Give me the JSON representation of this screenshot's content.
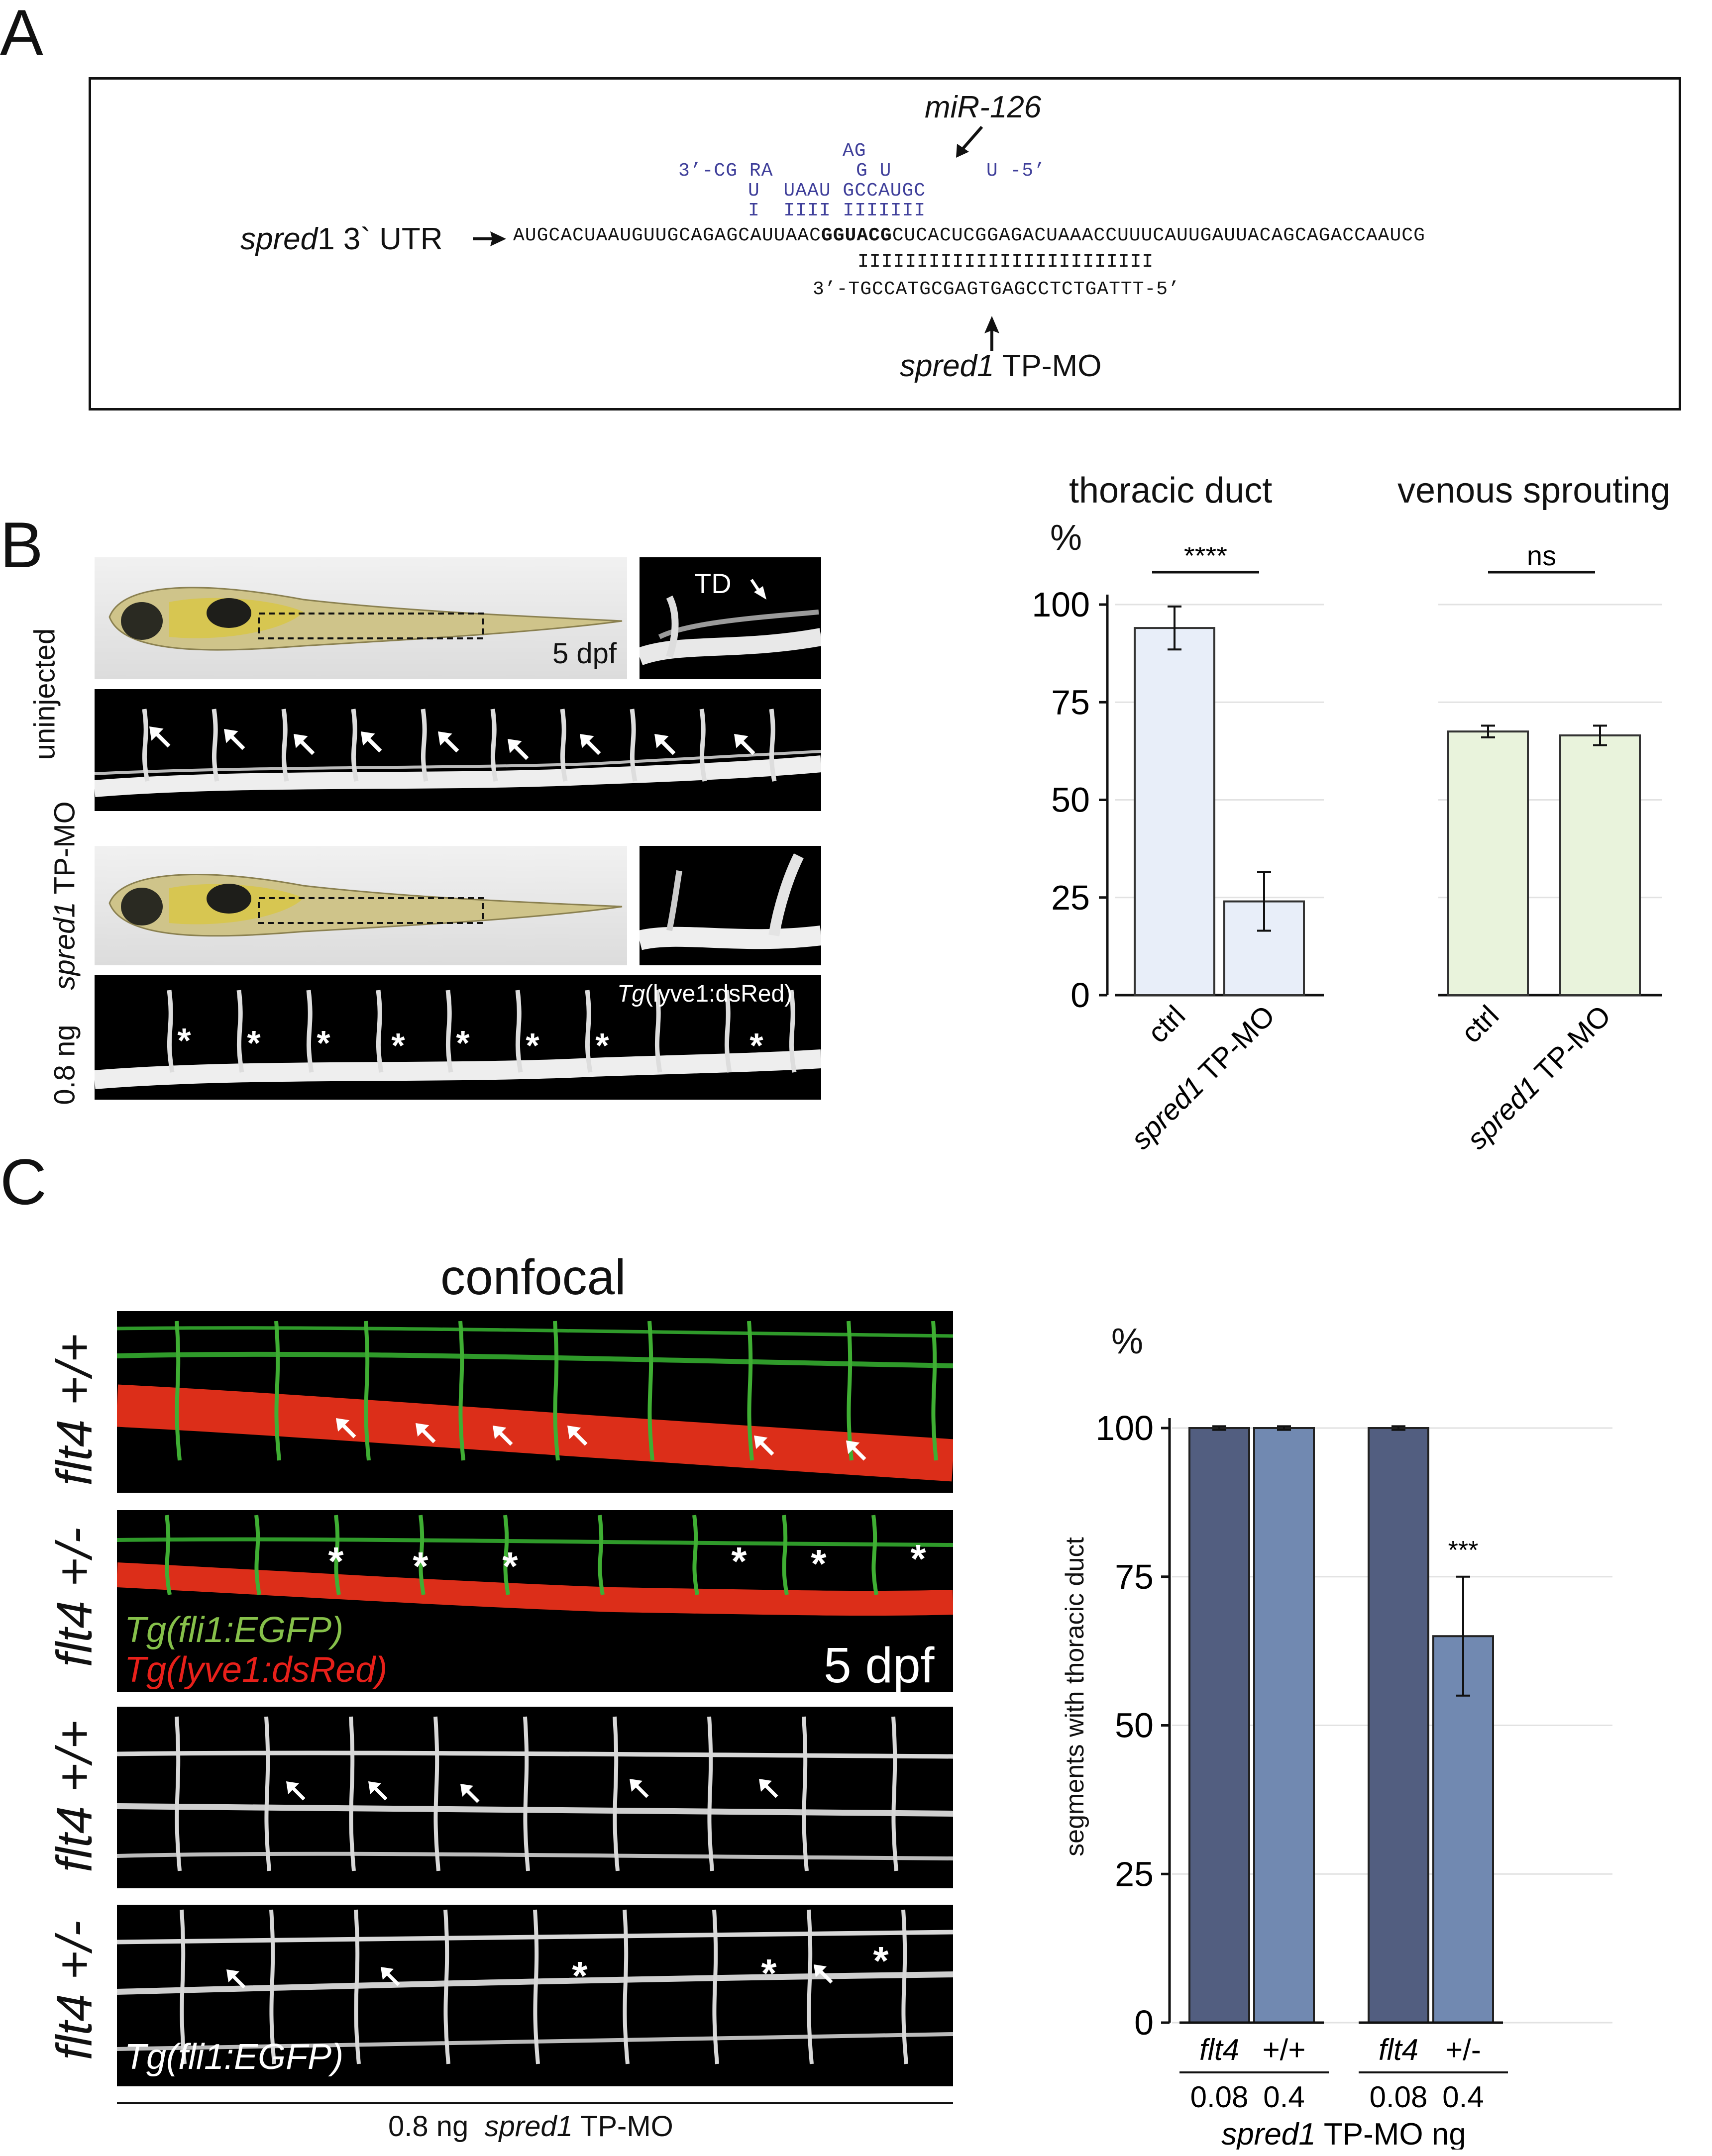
{
  "panels": {
    "a": "A",
    "b": "B",
    "c": "C"
  },
  "panel_a": {
    "mir_label": "miR-126",
    "mir_lines": [
      "AG",
      "3’-CG RA       G U        U -5’",
      "U  UAAU GCCAUGC",
      "I  IIII IIIIIII"
    ],
    "utr_label_italic": "spred",
    "utr_label_rest": "1 3` UTR",
    "utr_pre": "AUGCACUAAUGUUGCAGAGCAUUAAC",
    "utr_bold": "GGUACG",
    "utr_post": "CUCACUCGGAGACUAAACCUUUCAUUGAUUACAGCAGACCAAUCG",
    "mo_pairs": "IIIIIIIIIIIIIIIIIIIIIIIII",
    "mo_seq": "3’-TGCCATGCGAGTGAGCCTCTGATTT-5’",
    "mo_label_italic": "spred1",
    "mo_label_rest": " TP-MO"
  },
  "panel_b": {
    "row_labels": {
      "uninjected": "uninjected",
      "mo_italic": "spred1",
      "mo_rest": " TP-MO",
      "dose": "0.8 ng"
    },
    "dpf_label": "5 dpf",
    "td_label": "TD",
    "transgene_italic": "Tg",
    "transgene_rest": "(lyve1:dsRed)",
    "asterisk": "*"
  },
  "panel_c": {
    "confocal_title": "confocal",
    "genotypes": [
      "flt4 +/+",
      "flt4 +/-",
      "flt4 +/+",
      "flt4 +/-"
    ],
    "fli_label": "Tg(fli1:EGFP)",
    "lyve_label": "Tg(lyve1:dsRed)",
    "dpf_label": "5 dpf",
    "fli_label_bw": "Tg(fli1:EGFP)",
    "bottom_dose": "0.8 ng",
    "bottom_mo_italic": "spred1",
    "bottom_mo_rest": " TP-MO",
    "asterisk": "*"
  },
  "chart_data": [
    {
      "type": "bar",
      "title": "thoracic duct",
      "ylabel": "%",
      "categories": [
        "ctrl",
        "spred1 TP-MO"
      ],
      "values": [
        94,
        24
      ],
      "errors": [
        5.5,
        7.5
      ],
      "ylim": [
        0,
        100
      ],
      "yticks": [
        0,
        25,
        50,
        75,
        100
      ],
      "significance": "****",
      "color": "#e8eef9",
      "grid": true
    },
    {
      "type": "bar",
      "title": "venous sprouting",
      "categories": [
        "ctrl",
        "spred1 TP-MO"
      ],
      "values": [
        67.5,
        66.5
      ],
      "errors": [
        1.5,
        2.5
      ],
      "ylim": [
        0,
        100
      ],
      "significance": "ns",
      "color": "#e9f3dc",
      "grid": true
    },
    {
      "type": "bar",
      "ylabel": "%",
      "yaxis_label": "segments with thoracic duct",
      "ylim": [
        0,
        100
      ],
      "yticks": [
        0,
        25,
        50,
        75,
        100
      ],
      "groups": [
        {
          "genotype": "flt4",
          "values": [
            100,
            100
          ],
          "errors": [
            0.3,
            0.3
          ]
        },
        {
          "genotype": "+/-",
          "values": [
            100,
            65
          ],
          "errors": [
            0.3,
            10
          ]
        }
      ],
      "bar_labels": [
        "flt4",
        "+/+",
        "flt4",
        "+/-"
      ],
      "doses": [
        "0.08",
        "0.4",
        "0.08",
        "0.4"
      ],
      "xlabel_italic": "spred1",
      "xlabel_rest": " TP-MO ng",
      "significance": "***",
      "colors": [
        "#525e80",
        "#7189b1"
      ],
      "grid": true
    }
  ]
}
